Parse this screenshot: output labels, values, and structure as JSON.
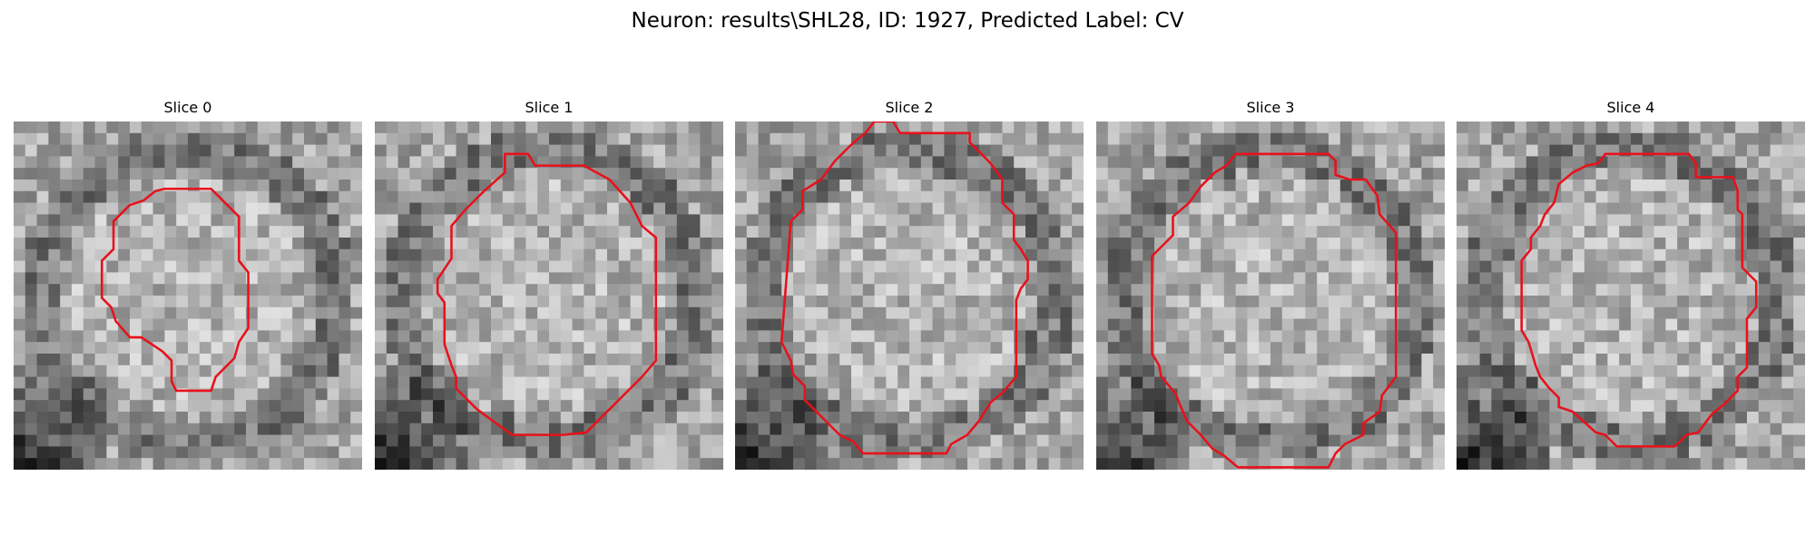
{
  "figure": {
    "title": "Neuron: results\\SHL28, ID: 1927, Predicted Label: CV"
  },
  "panels": [
    {
      "title": "Slice 0",
      "outline_color": "#e8111b",
      "image_description_grid_size": 30,
      "contour": [
        [
          16.0,
          5.8
        ],
        [
          17.0,
          5.8
        ],
        [
          18.0,
          6.8
        ],
        [
          19.4,
          8.2
        ],
        [
          19.4,
          12.0
        ],
        [
          20.2,
          13.0
        ],
        [
          20.2,
          17.8
        ],
        [
          19.4,
          19.0
        ],
        [
          19.0,
          20.4
        ],
        [
          17.4,
          22.0
        ],
        [
          17.0,
          23.2
        ],
        [
          14.0,
          23.2
        ],
        [
          13.6,
          22.4
        ],
        [
          13.6,
          20.6
        ],
        [
          12.8,
          19.8
        ],
        [
          11.0,
          18.6
        ],
        [
          10.0,
          18.6
        ],
        [
          8.8,
          17.2
        ],
        [
          8.4,
          16.0
        ],
        [
          7.6,
          15.2
        ],
        [
          7.6,
          12.0
        ],
        [
          8.6,
          11.0
        ],
        [
          8.6,
          8.6
        ],
        [
          10.0,
          7.2
        ],
        [
          11.2,
          6.8
        ],
        [
          12.2,
          6.0
        ],
        [
          13.0,
          5.8
        ],
        [
          14.0,
          5.8
        ]
      ],
      "pixels_seed": 11
    },
    {
      "title": "Slice 1",
      "outline_color": "#e8111b",
      "image_description_grid_size": 30,
      "contour": [
        [
          11.2,
          2.8
        ],
        [
          13.2,
          2.8
        ],
        [
          13.8,
          3.8
        ],
        [
          18.0,
          3.8
        ],
        [
          20.2,
          5.0
        ],
        [
          22.0,
          7.0
        ],
        [
          23.0,
          9.0
        ],
        [
          24.2,
          10.0
        ],
        [
          24.2,
          20.6
        ],
        [
          23.0,
          22.0
        ],
        [
          21.0,
          24.0
        ],
        [
          19.0,
          26.0
        ],
        [
          18.2,
          26.8
        ],
        [
          16.2,
          27.0
        ],
        [
          11.8,
          27.0
        ],
        [
          8.8,
          24.8
        ],
        [
          7.0,
          23.0
        ],
        [
          7.0,
          22.0
        ],
        [
          6.6,
          21.0
        ],
        [
          6.0,
          19.2
        ],
        [
          6.0,
          15.6
        ],
        [
          5.4,
          14.8
        ],
        [
          5.4,
          13.6
        ],
        [
          5.8,
          13.0
        ],
        [
          6.6,
          11.8
        ],
        [
          6.6,
          9.0
        ],
        [
          7.8,
          7.6
        ],
        [
          9.4,
          6.0
        ],
        [
          11.2,
          4.4
        ]
      ],
      "pixels_seed": 23
    },
    {
      "title": "Slice 2",
      "outline_color": "#e8111b",
      "image_description_grid_size": 30,
      "contour": [
        [
          12.0,
          0.0
        ],
        [
          13.6,
          0.0
        ],
        [
          14.2,
          1.0
        ],
        [
          20.2,
          1.0
        ],
        [
          20.2,
          1.8
        ],
        [
          21.0,
          2.6
        ],
        [
          22.0,
          3.6
        ],
        [
          23.0,
          5.0
        ],
        [
          23.0,
          7.0
        ],
        [
          24.0,
          8.0
        ],
        [
          24.0,
          10.2
        ],
        [
          24.6,
          11.0
        ],
        [
          25.2,
          12.0
        ],
        [
          25.2,
          13.6
        ],
        [
          24.6,
          14.4
        ],
        [
          24.2,
          15.4
        ],
        [
          24.2,
          22.0
        ],
        [
          23.0,
          23.4
        ],
        [
          22.0,
          24.2
        ],
        [
          21.0,
          25.8
        ],
        [
          20.0,
          27.0
        ],
        [
          18.6,
          27.8
        ],
        [
          18.2,
          28.6
        ],
        [
          11.0,
          28.6
        ],
        [
          10.2,
          27.6
        ],
        [
          9.0,
          27.0
        ],
        [
          7.0,
          25.0
        ],
        [
          6.0,
          24.0
        ],
        [
          6.0,
          22.8
        ],
        [
          5.0,
          21.8
        ],
        [
          4.8,
          20.6
        ],
        [
          4.0,
          19.0
        ],
        [
          4.8,
          8.6
        ],
        [
          5.8,
          7.6
        ],
        [
          5.8,
          6.0
        ],
        [
          7.4,
          5.0
        ],
        [
          8.6,
          3.4
        ],
        [
          10.0,
          2.0
        ],
        [
          11.2,
          1.0
        ]
      ],
      "pixels_seed": 37
    },
    {
      "title": "Slice 3",
      "outline_color": "#e8111b",
      "image_description_grid_size": 30,
      "contour": [
        [
          12.0,
          2.8
        ],
        [
          20.0,
          2.8
        ],
        [
          20.6,
          3.4
        ],
        [
          20.6,
          4.6
        ],
        [
          21.8,
          5.0
        ],
        [
          23.2,
          5.0
        ],
        [
          24.2,
          6.4
        ],
        [
          24.4,
          8.0
        ],
        [
          25.8,
          9.6
        ],
        [
          25.8,
          22.0
        ],
        [
          24.6,
          23.6
        ],
        [
          24.4,
          25.0
        ],
        [
          23.0,
          26.0
        ],
        [
          23.0,
          27.0
        ],
        [
          21.4,
          27.8
        ],
        [
          20.6,
          28.6
        ],
        [
          20.0,
          29.8
        ],
        [
          12.2,
          29.8
        ],
        [
          11.0,
          28.8
        ],
        [
          10.0,
          28.2
        ],
        [
          9.0,
          27.0
        ],
        [
          7.8,
          25.8
        ],
        [
          7.2,
          24.4
        ],
        [
          6.8,
          23.4
        ],
        [
          5.6,
          22.0
        ],
        [
          5.4,
          21.0
        ],
        [
          4.8,
          20.0
        ],
        [
          4.8,
          11.6
        ],
        [
          6.0,
          10.4
        ],
        [
          6.6,
          9.8
        ],
        [
          6.6,
          8.2
        ],
        [
          8.0,
          7.0
        ],
        [
          9.0,
          5.6
        ],
        [
          10.2,
          4.4
        ],
        [
          11.2,
          3.8
        ]
      ],
      "pixels_seed": 51
    },
    {
      "title": "Slice 4",
      "outline_color": "#e8111b",
      "image_description_grid_size": 30,
      "contour": [
        [
          12.8,
          2.8
        ],
        [
          20.0,
          2.8
        ],
        [
          20.6,
          3.6
        ],
        [
          20.6,
          4.8
        ],
        [
          23.8,
          4.8
        ],
        [
          24.2,
          6.0
        ],
        [
          24.2,
          7.6
        ],
        [
          24.6,
          8.0
        ],
        [
          24.6,
          12.6
        ],
        [
          25.8,
          13.8
        ],
        [
          25.8,
          16.0
        ],
        [
          25.0,
          17.0
        ],
        [
          25.0,
          21.2
        ],
        [
          24.2,
          22.0
        ],
        [
          24.2,
          23.2
        ],
        [
          23.0,
          24.4
        ],
        [
          22.0,
          25.2
        ],
        [
          20.8,
          26.8
        ],
        [
          19.8,
          27.0
        ],
        [
          18.8,
          28.0
        ],
        [
          13.8,
          28.0
        ],
        [
          12.8,
          27.0
        ],
        [
          12.0,
          26.8
        ],
        [
          10.0,
          25.0
        ],
        [
          8.8,
          24.6
        ],
        [
          8.8,
          23.8
        ],
        [
          8.0,
          23.0
        ],
        [
          7.2,
          22.0
        ],
        [
          6.8,
          21.0
        ],
        [
          6.2,
          19.0
        ],
        [
          5.6,
          18.0
        ],
        [
          5.6,
          12.0
        ],
        [
          6.4,
          11.0
        ],
        [
          6.4,
          10.0
        ],
        [
          7.2,
          9.0
        ],
        [
          7.6,
          8.0
        ],
        [
          8.4,
          7.0
        ],
        [
          8.8,
          5.4
        ],
        [
          10.0,
          4.4
        ],
        [
          11.2,
          3.8
        ],
        [
          12.2,
          3.6
        ]
      ],
      "pixels_seed": 67
    }
  ]
}
